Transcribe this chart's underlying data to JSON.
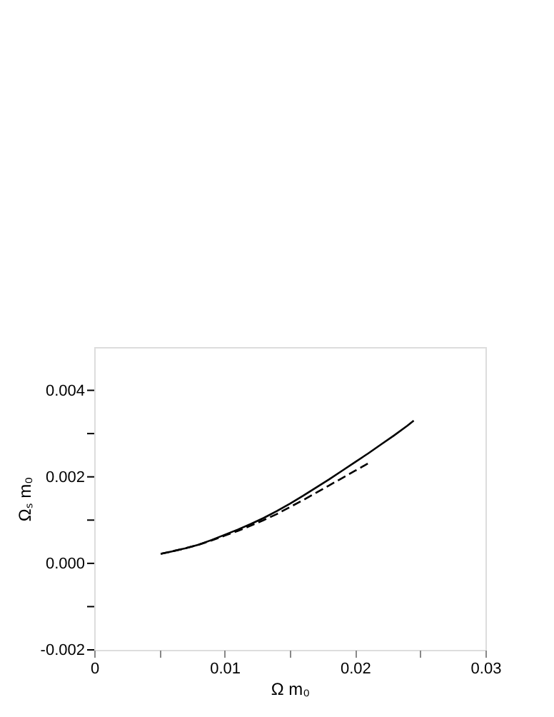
{
  "chart_data": {
    "type": "line",
    "xlabel": "Ω m₀",
    "ylabel": "Ωₛ m₀",
    "xlim": [
      0,
      0.03
    ],
    "ylim": [
      -0.002,
      0.005
    ],
    "xticks": [
      0,
      {
        "value": 0.005,
        "label": null
      },
      0.01,
      {
        "value": 0.015,
        "label": null
      },
      0.02,
      {
        "value": 0.025,
        "label": null
      },
      0.03
    ],
    "yticks": [
      -0.002,
      {
        "value": -0.001,
        "label": null
      },
      {
        "value": 0,
        "label": "0.000"
      },
      {
        "value": 0.001,
        "label": null
      },
      0.002,
      {
        "value": 0.003,
        "label": null
      },
      0.004
    ],
    "grid": false,
    "series": [
      {
        "color": "#000000",
        "line_style": "solid",
        "x": [
          0.0051,
          0.006,
          0.007,
          0.008,
          0.009,
          0.01,
          0.011,
          0.012,
          0.013,
          0.014,
          0.015,
          0.016,
          0.017,
          0.018,
          0.019,
          0.02,
          0.021,
          0.022,
          0.023,
          0.024,
          0.0245
        ],
        "values": [
          0.00022,
          0.00028,
          0.00035,
          0.00043,
          0.00054,
          0.00066,
          0.00078,
          0.00091,
          0.00105,
          0.00121,
          0.00138,
          0.00156,
          0.00175,
          0.00194,
          0.00214,
          0.00234,
          0.00254,
          0.00275,
          0.00296,
          0.00318,
          0.0033
        ]
      },
      {
        "color": "#000000",
        "line_style": "dashed",
        "x": [
          0.0051,
          0.006,
          0.007,
          0.008,
          0.009,
          0.01,
          0.011,
          0.012,
          0.013,
          0.014,
          0.015,
          0.016,
          0.017,
          0.018,
          0.019,
          0.02,
          0.021,
          0.0212
        ],
        "values": [
          0.00022,
          0.00028,
          0.00035,
          0.00043,
          0.00053,
          0.00064,
          0.00075,
          0.00087,
          0.001,
          0.00114,
          0.0013,
          0.00146,
          0.00163,
          0.0018,
          0.00197,
          0.00214,
          0.00231,
          0.00234
        ]
      }
    ]
  }
}
